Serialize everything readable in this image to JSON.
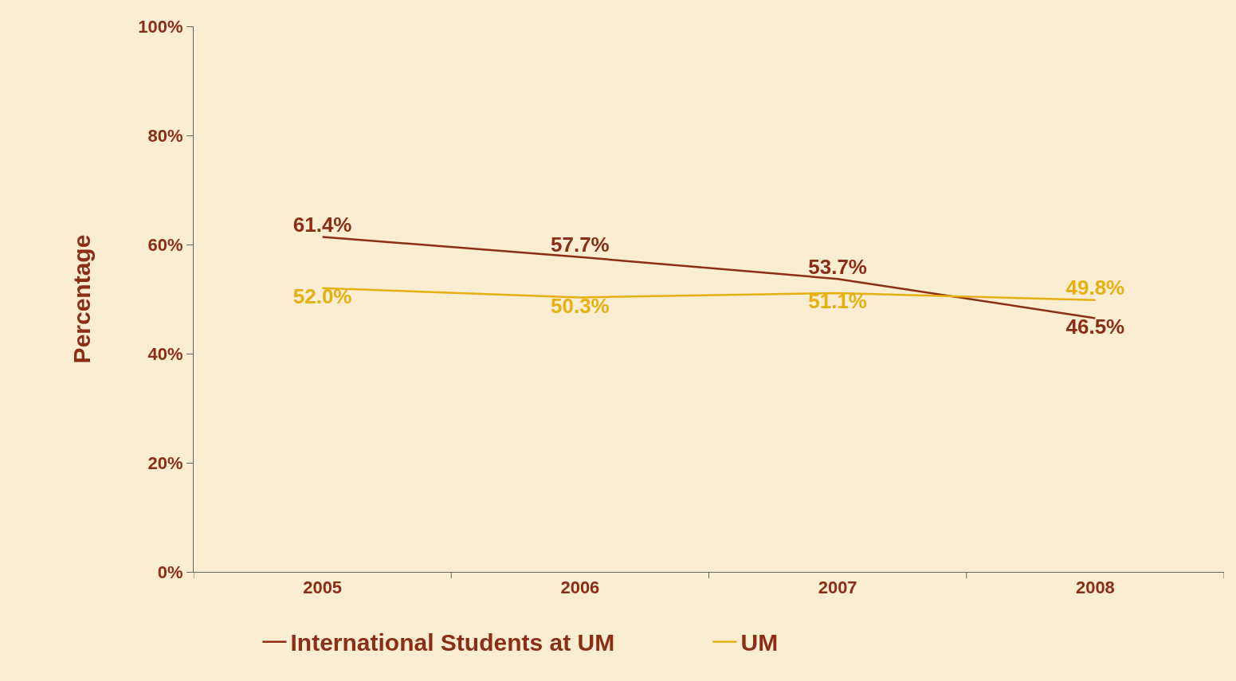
{
  "chart_data": {
    "type": "line",
    "ylabel": "Percentage",
    "categories": [
      "2005",
      "2006",
      "2007",
      "2008"
    ],
    "series": [
      {
        "name": "International Students at UM",
        "color": "#8b2e16",
        "values": [
          61.4,
          57.7,
          53.7,
          46.5
        ],
        "value_labels": [
          "61.4%",
          "57.7%",
          "53.7%",
          "46.5%"
        ]
      },
      {
        "name": "UM",
        "color": "#e6b012",
        "values": [
          52.0,
          50.3,
          51.1,
          49.8
        ],
        "value_labels": [
          "52.0%",
          "50.3%",
          "51.1%",
          "49.8%"
        ]
      }
    ],
    "ylim": [
      0,
      100
    ],
    "yticks": [
      {
        "value": 0,
        "label": "0%"
      },
      {
        "value": 20,
        "label": "20%"
      },
      {
        "value": 40,
        "label": "40%"
      },
      {
        "value": 60,
        "label": "60%"
      },
      {
        "value": 80,
        "label": "80%"
      },
      {
        "value": 100,
        "label": "100%"
      }
    ],
    "legend": "bottom",
    "grid": false,
    "marker": "none",
    "line_style": "solid"
  }
}
